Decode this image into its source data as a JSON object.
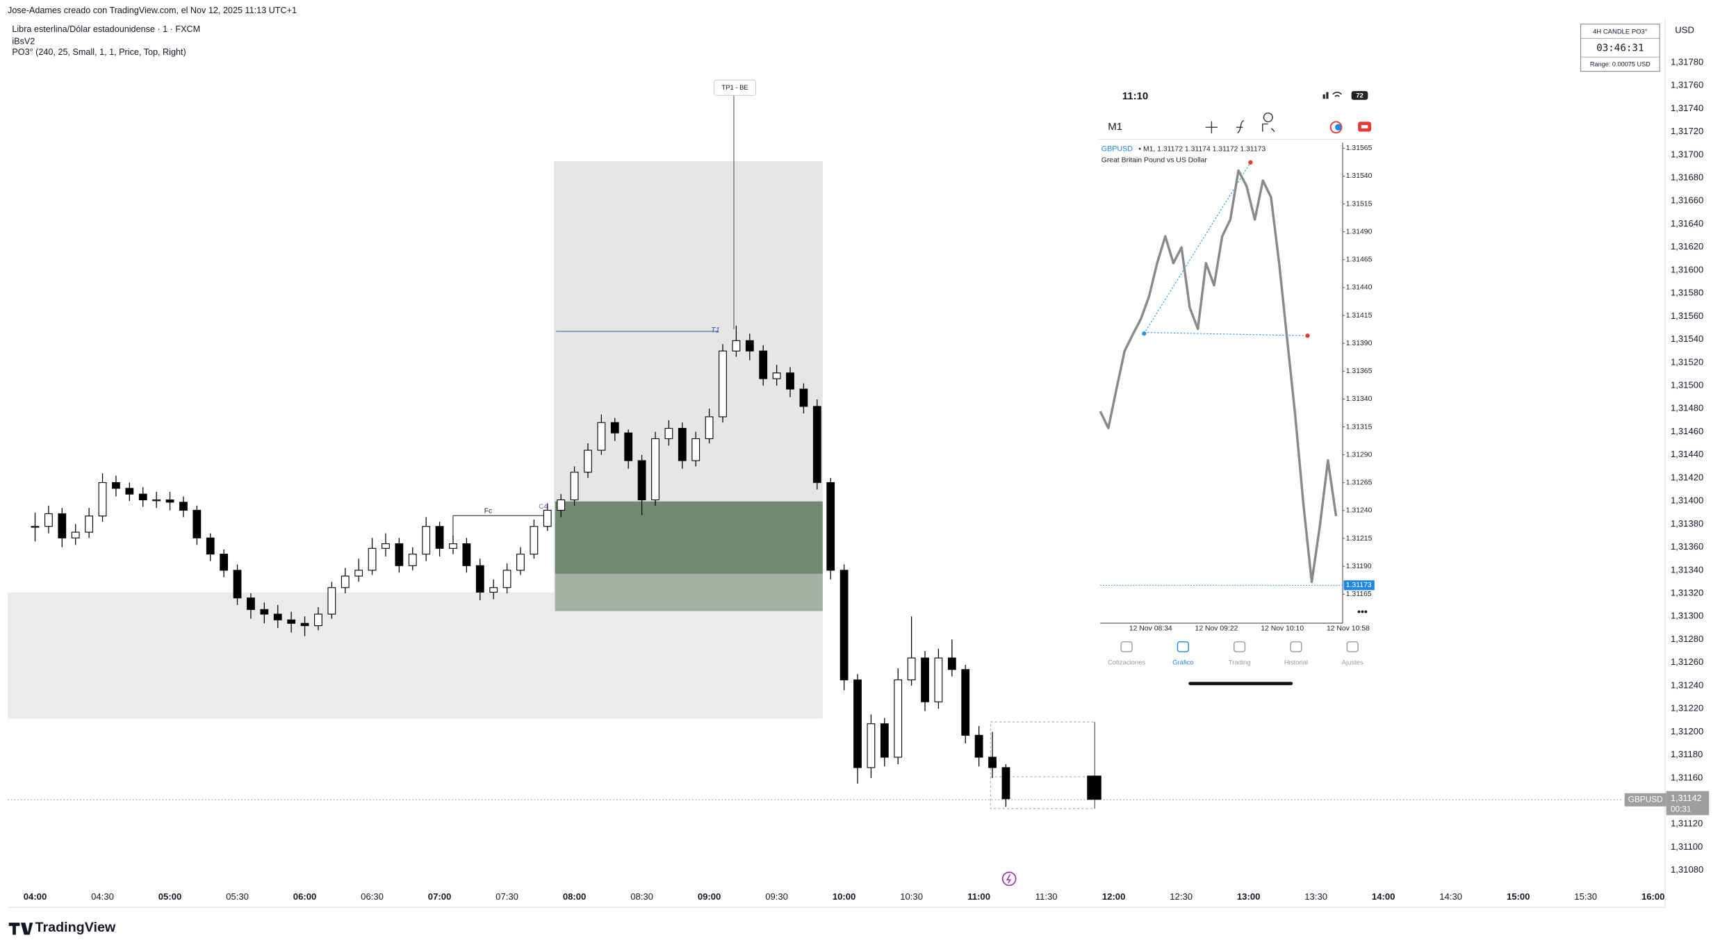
{
  "header": {
    "credit": "Jose-Adames creado con TradingView.com, el Nov 12, 2025 11:13 UTC+1",
    "symbol": "Libra esterlina/Dólar estadounidense · 1 · FXCM",
    "indicator": "iBsV2",
    "settings": "PO3° (240, 25, Small, 1, 1, Price, Top, Right)"
  },
  "widget": {
    "title": "4H CANDLE PO3°",
    "timer": "03:46:31",
    "range": "Range: 0.00075 USD",
    "currency": "USD"
  },
  "annotations": {
    "tp": "TP1 - BE",
    "t1": "T1",
    "fc": "Fc",
    "c4": "C4"
  },
  "price_label": {
    "symbol": "GBPUSD",
    "price": "1,31142",
    "countdown": "00:31"
  },
  "brand": "TradingView",
  "inset": {
    "clock": "11:10",
    "battery": "72",
    "timeframe": "M1",
    "symbol": "GBPUSD",
    "legend": "• M1, 1.31172 1.31174 1.31172 1.31173",
    "name": "Great Britain Pound vs US Dollar",
    "last": "1.31173",
    "tabs": [
      "Cotizaciones",
      "Gráfico",
      "Trading",
      "Historial",
      "Ajustes"
    ]
  },
  "chart_data": [
    {
      "type": "candlestick",
      "x": [
        "04:00",
        "04:06",
        "04:12",
        "04:18",
        "04:24",
        "04:30",
        "04:36",
        "04:42",
        "04:48",
        "04:54",
        "05:00",
        "05:06",
        "05:12",
        "05:18",
        "05:24",
        "05:30",
        "05:36",
        "05:42",
        "05:48",
        "05:54",
        "06:00",
        "06:06",
        "06:12",
        "06:18",
        "06:24",
        "06:30",
        "06:36",
        "06:42",
        "06:48",
        "06:54",
        "07:00",
        "07:06",
        "07:12",
        "07:18",
        "07:24",
        "07:30",
        "07:36",
        "07:42",
        "07:48",
        "07:54",
        "08:00",
        "08:06",
        "08:12",
        "08:18",
        "08:24",
        "08:30",
        "08:36",
        "08:42",
        "08:48",
        "08:54",
        "09:00",
        "09:06",
        "09:12",
        "09:18",
        "09:24",
        "09:30",
        "09:36",
        "09:42",
        "09:48",
        "09:54",
        "10:00",
        "10:06",
        "10:12",
        "10:18",
        "10:24",
        "10:30",
        "10:36",
        "10:42",
        "10:48",
        "10:54",
        "11:00",
        "11:06",
        "11:12"
      ],
      "close": [
        1.31378,
        1.31389,
        1.31368,
        1.31373,
        1.31387,
        1.31416,
        1.31411,
        1.31406,
        1.31401,
        1.31401,
        1.31399,
        1.31392,
        1.31368,
        1.31354,
        1.3134,
        1.31316,
        1.31306,
        1.31302,
        1.31297,
        1.31294,
        1.31292,
        1.31302,
        1.31325,
        1.31335,
        1.3134,
        1.31359,
        1.31363,
        1.31344,
        1.31354,
        1.31378,
        1.31359,
        1.31363,
        1.31344,
        1.31321,
        1.31325,
        1.3134,
        1.31354,
        1.31378,
        1.31392,
        1.31401,
        1.31425,
        1.31444,
        1.31468,
        1.31459,
        1.31435,
        1.31401,
        1.31454,
        1.31463,
        1.31435,
        1.31454,
        1.31473,
        1.3153,
        1.31539,
        1.3153,
        1.31506,
        1.31511,
        1.31497,
        1.31482,
        1.31416,
        1.3134,
        1.31245,
        1.31169,
        1.31207,
        1.31178,
        1.31245,
        1.31264,
        1.31226,
        1.31264,
        1.31254,
        1.31197,
        1.31178,
        1.31169,
        1.31142
      ],
      "high": [
        1.3139,
        1.31396,
        1.31394,
        1.3138,
        1.31394,
        1.31424,
        1.31422,
        1.31416,
        1.31412,
        1.31408,
        1.31408,
        1.31404,
        1.31396,
        1.31372,
        1.31358,
        1.31345,
        1.3132,
        1.31312,
        1.3131,
        1.31304,
        1.313,
        1.31308,
        1.3133,
        1.31342,
        1.3135,
        1.31368,
        1.31372,
        1.31368,
        1.3136,
        1.31386,
        1.31382,
        1.3137,
        1.31368,
        1.3135,
        1.31332,
        1.31346,
        1.3136,
        1.31384,
        1.31398,
        1.31406,
        1.3143,
        1.3145,
        1.31475,
        1.31472,
        1.31462,
        1.3144,
        1.3146,
        1.3147,
        1.31468,
        1.3146,
        1.3148,
        1.31536,
        1.31552,
        1.31545,
        1.31535,
        1.31518,
        1.31516,
        1.31502,
        1.31488,
        1.3142,
        1.31345,
        1.3125,
        1.31215,
        1.31212,
        1.31255,
        1.313,
        1.3127,
        1.31272,
        1.3128,
        1.31258,
        1.31205,
        1.312,
        1.31172
      ],
      "low": [
        1.31365,
        1.31372,
        1.3136,
        1.31362,
        1.31368,
        1.31382,
        1.31404,
        1.314,
        1.31395,
        1.31394,
        1.31392,
        1.31386,
        1.31362,
        1.31348,
        1.31334,
        1.3131,
        1.31298,
        1.31294,
        1.3129,
        1.31286,
        1.31283,
        1.31288,
        1.31298,
        1.3132,
        1.3133,
        1.31336,
        1.31352,
        1.31338,
        1.3134,
        1.31348,
        1.31352,
        1.31354,
        1.31338,
        1.31314,
        1.31315,
        1.3132,
        1.31336,
        1.3135,
        1.31374,
        1.31386,
        1.31396,
        1.3142,
        1.3144,
        1.31452,
        1.31428,
        1.31388,
        1.31396,
        1.31448,
        1.31428,
        1.3143,
        1.3145,
        1.31468,
        1.31525,
        1.31522,
        1.315,
        1.315,
        1.3149,
        1.31476,
        1.3141,
        1.31332,
        1.31236,
        1.31155,
        1.3116,
        1.3117,
        1.31172,
        1.3124,
        1.31218,
        1.3122,
        1.31248,
        1.3119,
        1.3117,
        1.3116,
        1.31135
      ],
      "ylim": [
        1.31066,
        1.31818
      ],
      "yticks": [
        {
          "value": 1.3178,
          "label": "1,31780"
        },
        {
          "value": 1.3176,
          "label": "1,31760"
        },
        {
          "value": 1.3174,
          "label": "1,31740"
        },
        {
          "value": 1.3172,
          "label": "1,31720"
        },
        {
          "value": 1.317,
          "label": "1,31700"
        },
        {
          "value": 1.3168,
          "label": "1,31680"
        },
        {
          "value": 1.3166,
          "label": "1,31660"
        },
        {
          "value": 1.3164,
          "label": "1,31640"
        },
        {
          "value": 1.3162,
          "label": "1,31620"
        },
        {
          "value": 1.316,
          "label": "1,31600"
        },
        {
          "value": 1.3158,
          "label": "1,31580"
        },
        {
          "value": 1.3156,
          "label": "1,31560"
        },
        {
          "value": 1.3154,
          "label": "1,31540"
        },
        {
          "value": 1.3152,
          "label": "1,31520"
        },
        {
          "value": 1.315,
          "label": "1,31500"
        },
        {
          "value": 1.3148,
          "label": "1,31480"
        },
        {
          "value": 1.3146,
          "label": "1,31460"
        },
        {
          "value": 1.3144,
          "label": "1,31440"
        },
        {
          "value": 1.3142,
          "label": "1,31420"
        },
        {
          "value": 1.314,
          "label": "1,31400"
        },
        {
          "value": 1.3138,
          "label": "1,31380"
        },
        {
          "value": 1.3136,
          "label": "1,31360"
        },
        {
          "value": 1.3134,
          "label": "1,31340"
        },
        {
          "value": 1.3132,
          "label": "1,31320"
        },
        {
          "value": 1.313,
          "label": "1,31300"
        },
        {
          "value": 1.3128,
          "label": "1,31280"
        },
        {
          "value": 1.3126,
          "label": "1,31260"
        },
        {
          "value": 1.3124,
          "label": "1,31240"
        },
        {
          "value": 1.3122,
          "label": "1,31220"
        },
        {
          "value": 1.312,
          "label": "1,31200"
        },
        {
          "value": 1.3118,
          "label": "1,31180"
        },
        {
          "value": 1.3116,
          "label": "1,31160"
        },
        {
          "value": 1.3114,
          "label": "1,31140"
        },
        {
          "value": 1.3112,
          "label": "1,31120"
        },
        {
          "value": 1.311,
          "label": "1,31100"
        },
        {
          "value": 1.3108,
          "label": "1,31080"
        }
      ],
      "xticks": [
        "04:00",
        "04:30",
        "05:00",
        "05:30",
        "06:00",
        "06:30",
        "07:00",
        "07:30",
        "08:00",
        "08:30",
        "09:00",
        "09:30",
        "10:00",
        "10:30",
        "11:00",
        "11:30",
        "12:00",
        "12:30",
        "13:00",
        "13:30",
        "14:00",
        "14:30",
        "15:00",
        "15:30",
        "16:00"
      ],
      "up_color": "#ffffff",
      "down_color": "#000000",
      "grid": false
    },
    {
      "type": "line",
      "color": "#8a8a8a",
      "values": [
        1.31329,
        1.31314,
        1.31349,
        1.31383,
        1.31398,
        1.31412,
        1.31432,
        1.31462,
        1.31486,
        1.31462,
        1.31476,
        1.31422,
        1.31403,
        1.31462,
        1.31442,
        1.31486,
        1.31501,
        1.31545,
        1.31531,
        1.31501,
        1.31536,
        1.31521,
        1.31462,
        1.31393,
        1.31324,
        1.31245,
        1.31176,
        1.31226,
        1.31285,
        1.31235
      ],
      "ylim": [
        1.31139,
        1.3157
      ],
      "yticks": [
        1.31565,
        {
          "value": 1.3154,
          "label": "1.31540"
        },
        1.31515,
        {
          "value": 1.3149,
          "label": "1.31490"
        },
        1.31465,
        {
          "value": 1.3144,
          "label": "1.31440"
        },
        1.31415,
        {
          "value": 1.3139,
          "label": "1.31390"
        },
        1.31365,
        {
          "value": 1.3134,
          "label": "1.31340"
        },
        1.31315,
        {
          "value": 1.3129,
          "label": "1.31290"
        },
        1.31265,
        {
          "value": 1.3124,
          "label": "1.31240"
        },
        1.31215,
        {
          "value": 1.3119,
          "label": "1.31190"
        },
        1.31165
      ],
      "xticks": [
        "12 Nov 08:34",
        "12 Nov 09:22",
        "12 Nov 10:10",
        "12 Nov 10:58"
      ],
      "last_value": 1.31173
    }
  ]
}
